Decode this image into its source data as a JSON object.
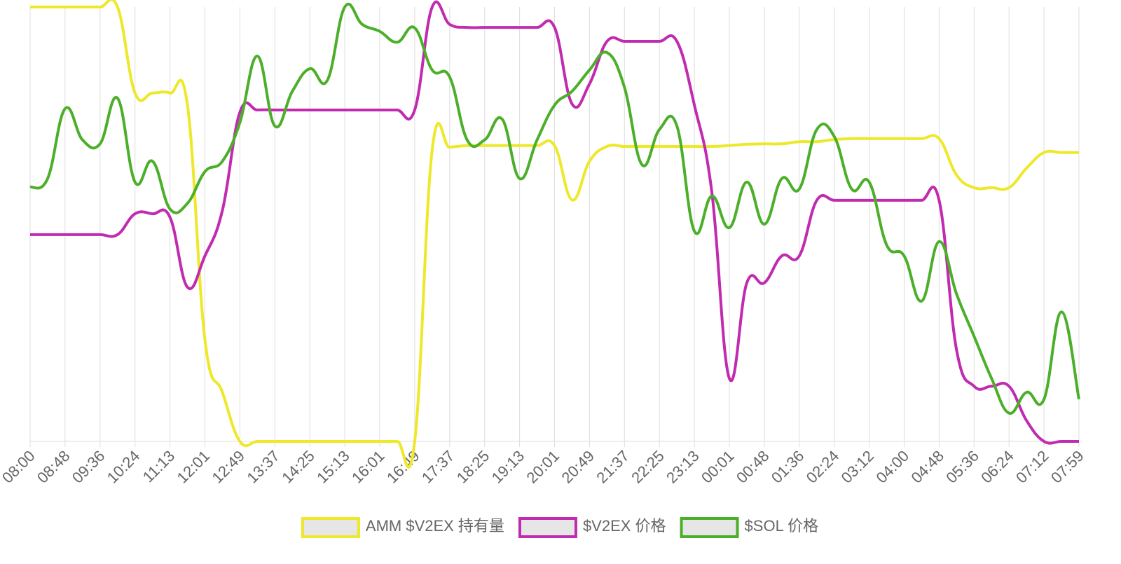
{
  "chart_data": {
    "type": "line",
    "categories": [
      "08:00",
      null,
      "08:48",
      null,
      "09:36",
      null,
      "10:24",
      null,
      "11:13",
      null,
      "12:01",
      null,
      "12:49",
      null,
      "13:37",
      null,
      "14:25",
      null,
      "15:13",
      null,
      "16:01",
      null,
      "16:49",
      null,
      "17:37",
      null,
      "18:25",
      null,
      "19:13",
      null,
      "20:01",
      null,
      "20:49",
      null,
      "21:37",
      null,
      "22:25",
      null,
      "23:13",
      null,
      "00:01",
      null,
      "00:48",
      null,
      "01:36",
      null,
      "02:24",
      null,
      "03:12",
      null,
      "04:00",
      null,
      "04:48",
      null,
      "05:36",
      null,
      "06:24",
      null,
      "07:12",
      null,
      "07:59"
    ],
    "series": [
      {
        "name": "AMM $V2EX 持有量",
        "color": "#eee82a",
        "values": [
          100,
          100,
          100,
          100,
          100,
          100,
          80.2,
          80.2,
          80.2,
          77.4,
          23.4,
          11.3,
          0,
          0,
          0,
          0,
          0,
          0,
          0,
          0,
          0,
          0,
          0,
          67.1,
          67.7,
          68.1,
          68.1,
          68.1,
          68.1,
          68.1,
          68.1,
          55.6,
          64.5,
          67.9,
          67.9,
          67.9,
          67.9,
          67.9,
          67.9,
          67.9,
          68.1,
          68.4,
          68.5,
          68.5,
          69,
          69,
          69.5,
          69.7,
          69.7,
          69.7,
          69.7,
          69.7,
          69.7,
          61.3,
          58.4,
          58.4,
          58.4,
          62.9,
          66.5,
          66.5,
          66.5
        ]
      },
      {
        "name": "$V2EX 价格",
        "color": "#c02bb0",
        "values": [
          47.6,
          47.6,
          47.6,
          47.6,
          47.6,
          47.6,
          52.4,
          52.4,
          51.6,
          35.5,
          42.7,
          53.2,
          75.8,
          76.3,
          76.3,
          76.3,
          76.3,
          76.3,
          76.3,
          76.3,
          76.3,
          76.3,
          76.3,
          100,
          96,
          95.3,
          95.3,
          95.3,
          95.3,
          95.3,
          95.3,
          77.7,
          82.3,
          92.1,
          92.1,
          92.1,
          92.1,
          92.1,
          77.4,
          57.3,
          14.5,
          36.5,
          36.5,
          42.7,
          42.7,
          55.5,
          55.5,
          55.5,
          55.5,
          55.5,
          55.5,
          55.5,
          55.5,
          21,
          12.7,
          12.7,
          12.7,
          4.8,
          0,
          0,
          0
        ]
      },
      {
        "name": "$SOL 价格",
        "color": "#4caf2a",
        "values": [
          58.5,
          60.5,
          76.6,
          69.4,
          68.5,
          79,
          59.7,
          64.5,
          53.5,
          54.8,
          62.1,
          64.5,
          73.4,
          88.7,
          72.6,
          80.6,
          85.8,
          83.1,
          100,
          96,
          94.4,
          91.9,
          95.2,
          85.5,
          83.9,
          69.4,
          69.4,
          74.2,
          60.5,
          69.4,
          77.4,
          80.6,
          85.5,
          89.5,
          81.5,
          63.7,
          71.8,
          72.6,
          48.4,
          56.5,
          49.2,
          59.7,
          50,
          60.5,
          58.1,
          71.8,
          70.2,
          58.1,
          59.7,
          45.2,
          42.7,
          32.3,
          46,
          33.9,
          24.2,
          14.5,
          6.5,
          11.3,
          9.7,
          29.8,
          9.7
        ]
      }
    ],
    "ylim": [
      0,
      100
    ],
    "grid": true,
    "legend": "bottom"
  }
}
